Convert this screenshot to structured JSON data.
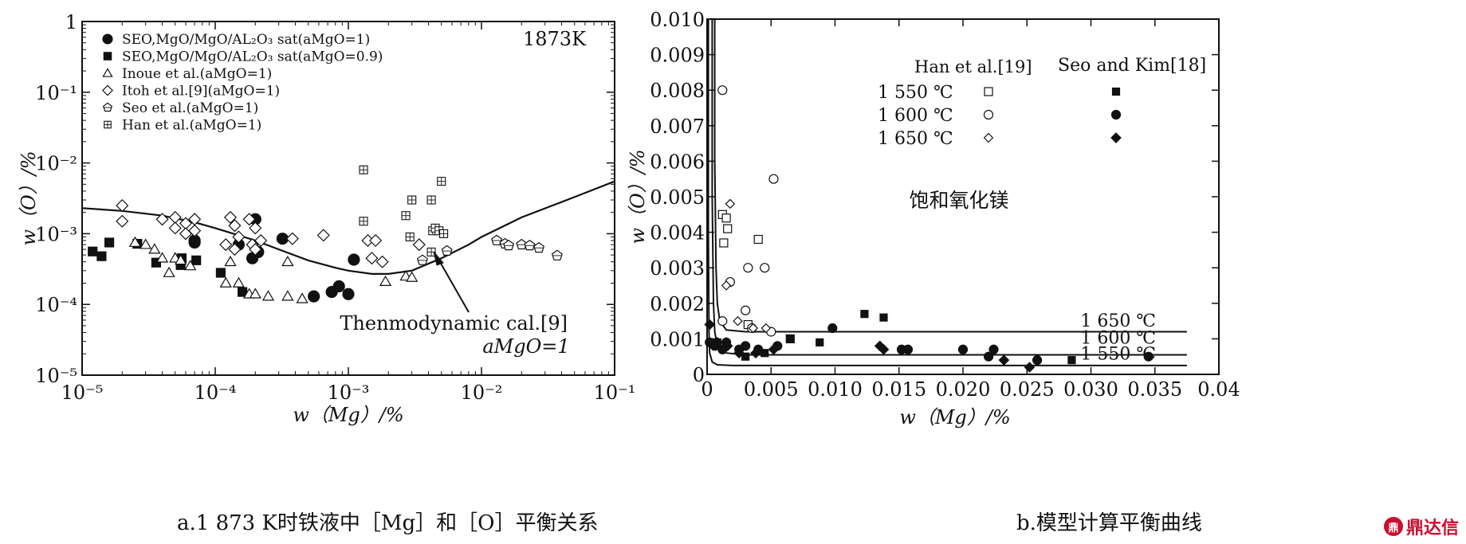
{
  "captions": {
    "a": "a.1 873 K时铁液中［Mg］和［O］平衡关系",
    "b": "b.模型计算平衡曲线"
  },
  "watermark": "鼎达信",
  "chart_data": [
    {
      "type": "scatter",
      "xscale": "log",
      "yscale": "log",
      "xlim": [
        1e-05,
        0.1
      ],
      "ylim": [
        1e-05,
        1
      ],
      "xlabel": "w（Mg）/%",
      "ylabel": "w（O）/%",
      "xticklabels": [
        "10⁻⁵",
        "10⁻⁴",
        "10⁻³",
        "10⁻²",
        "10⁻¹"
      ],
      "yticklabels": [
        "10⁻⁵",
        "10⁻⁴",
        "10⁻³",
        "10⁻²",
        "10⁻¹",
        "1"
      ],
      "temperature_label": "1873K",
      "legend": [
        {
          "marker": "filled-circle",
          "text": "SEO,MgO/MgO/AL₂O₃  sat(aMgO=1)"
        },
        {
          "marker": "filled-square",
          "text": "SEO,MgO/MgO/AL₂O₃  sat(aMgO=0.9)"
        },
        {
          "marker": "open-triangle",
          "text": "Inoue et al.(aMgO=1)"
        },
        {
          "marker": "open-diamond",
          "text": "Itoh et al.[9](aMgO=1)"
        },
        {
          "marker": "open-pentagon",
          "text": "Seo et al.(aMgO=1)"
        },
        {
          "marker": "open-box-plus",
          "text": "Han et al.(aMgO=1)"
        }
      ],
      "annotation": {
        "line1": "Thenmodynamic cal.[9]",
        "line2": "aMgO=1"
      },
      "curve": {
        "name": "Thenmodynamic cal. aMgO=1",
        "x": [
          1e-05,
          2e-05,
          4e-05,
          7e-05,
          0.0001,
          0.00015,
          0.0002,
          0.0003,
          0.0005,
          0.0008,
          0.001,
          0.0015,
          0.002,
          0.003,
          0.005,
          0.008,
          0.01,
          0.02,
          0.05,
          0.1
        ],
        "y": [
          0.0023,
          0.0021,
          0.0018,
          0.00145,
          0.0012,
          0.00095,
          0.0008,
          0.0006,
          0.00042,
          0.00033,
          0.0003,
          0.00027,
          0.00027,
          0.0003,
          0.00045,
          0.0007,
          0.0009,
          0.0017,
          0.0033,
          0.0055
        ]
      },
      "series": [
        {
          "name": "SEO,MgO/MgO/AL₂O₃  sat(aMgO=1)",
          "marker": "filled-circle",
          "points": [
            [
              7e-05,
              0.0008
            ],
            [
              7e-05,
              0.00075
            ],
            [
              0.00015,
              0.0007
            ],
            [
              0.0002,
              0.0016
            ],
            [
              0.00019,
              0.00045
            ],
            [
              0.00021,
              0.00055
            ],
            [
              0.00032,
              0.00085
            ],
            [
              0.00055,
              0.00013
            ],
            [
              0.00075,
              0.00015
            ],
            [
              0.00085,
              0.00018
            ],
            [
              0.001,
              0.00014
            ],
            [
              0.0011,
              0.00043
            ]
          ]
        },
        {
          "name": "SEO,MgO/MgO/AL₂O₃  sat(aMgO=0.9)",
          "marker": "filled-square",
          "points": [
            [
              1.2e-05,
              0.00056
            ],
            [
              1.4e-05,
              0.00048
            ],
            [
              1.6e-05,
              0.00075
            ],
            [
              2.6e-05,
              0.00072
            ],
            [
              3.6e-05,
              0.00039
            ],
            [
              5.5e-05,
              0.00036
            ],
            [
              5.6e-05,
              0.00045
            ],
            [
              7.2e-05,
              0.00042
            ],
            [
              0.00011,
              0.00028
            ],
            [
              0.00016,
              0.00015
            ]
          ]
        },
        {
          "name": "Inoue et al.(aMgO=1)",
          "marker": "open-triangle",
          "points": [
            [
              2.5e-05,
              0.00075
            ],
            [
              3e-05,
              0.0007
            ],
            [
              3.5e-05,
              0.0006
            ],
            [
              4e-05,
              0.00045
            ],
            [
              4.5e-05,
              0.00028
            ],
            [
              5e-05,
              0.00045
            ],
            [
              5.5e-05,
              0.00042
            ],
            [
              6.5e-05,
              0.00035
            ],
            [
              0.00012,
              0.0002
            ],
            [
              0.00015,
              0.0002
            ],
            [
              0.00013,
              0.0004
            ],
            [
              0.00018,
              0.00014
            ],
            [
              0.0002,
              0.00014
            ],
            [
              0.00025,
              0.00013
            ],
            [
              0.00035,
              0.00013
            ],
            [
              0.00045,
              0.00012
            ],
            [
              0.00035,
              0.0004
            ],
            [
              0.0019,
              0.00021
            ],
            [
              0.0027,
              0.00025
            ],
            [
              0.003,
              0.00024
            ]
          ]
        },
        {
          "name": "Itoh et al.[9](aMgO=1)",
          "marker": "open-diamond",
          "points": [
            [
              2e-05,
              0.0025
            ],
            [
              2e-05,
              0.0015
            ],
            [
              4e-05,
              0.0016
            ],
            [
              5e-05,
              0.0017
            ],
            [
              6e-05,
              0.0014
            ],
            [
              7e-05,
              0.0016
            ],
            [
              5e-05,
              0.0012
            ],
            [
              6e-05,
              0.001
            ],
            [
              7e-05,
              0.0011
            ],
            [
              0.00013,
              0.0017
            ],
            [
              0.00014,
              0.0013
            ],
            [
              0.00015,
              0.0009
            ],
            [
              0.00012,
              0.0007
            ],
            [
              0.00014,
              0.0006
            ],
            [
              0.00018,
              0.0016
            ],
            [
              0.0002,
              0.0012
            ],
            [
              0.00019,
              0.0007
            ],
            [
              0.00022,
              0.0008
            ],
            [
              0.0002,
              0.0006
            ],
            [
              0.00038,
              0.00085
            ],
            [
              0.00065,
              0.00095
            ],
            [
              0.0014,
              0.0008
            ],
            [
              0.0016,
              0.0008
            ],
            [
              0.0015,
              0.00045
            ],
            [
              0.0018,
              0.0004
            ],
            [
              0.0034,
              0.0007
            ]
          ]
        },
        {
          "name": "Seo et al.(aMgO=1)",
          "marker": "open-pentagon",
          "points": [
            [
              0.0036,
              0.00042
            ],
            [
              0.0055,
              0.00057
            ],
            [
              0.013,
              0.0008
            ],
            [
              0.015,
              0.00072
            ],
            [
              0.016,
              0.00068
            ],
            [
              0.02,
              0.0007
            ],
            [
              0.023,
              0.00068
            ],
            [
              0.027,
              0.00063
            ],
            [
              0.037,
              0.00049
            ]
          ]
        },
        {
          "name": "Han et al.(aMgO=1)",
          "marker": "open-box-plus",
          "points": [
            [
              0.0013,
              0.008
            ],
            [
              0.0013,
              0.0015
            ],
            [
              0.0027,
              0.0018
            ],
            [
              0.003,
              0.003
            ],
            [
              0.0029,
              0.0009
            ],
            [
              0.0042,
              0.003
            ],
            [
              0.0043,
              0.0011
            ],
            [
              0.0045,
              0.0012
            ],
            [
              0.0048,
              0.0011
            ],
            [
              0.005,
              0.0055
            ],
            [
              0.0052,
              0.001
            ],
            [
              0.0042,
              0.00055
            ]
          ]
        }
      ]
    },
    {
      "type": "scatter",
      "xlim": [
        0,
        0.04
      ],
      "ylim": [
        0,
        0.01
      ],
      "xlabel": "w（Mg）/%",
      "ylabel": "w（O）/%",
      "xticklabels": [
        "0",
        "0.005",
        "0.010",
        "0.015",
        "0.020",
        "0.025",
        "0.030",
        "0.035",
        "0.04"
      ],
      "yticklabels": [
        "0",
        "0.001",
        "0.002",
        "0.003",
        "0.004",
        "0.005",
        "0.006",
        "0.007",
        "0.008",
        "0.009",
        "0.010"
      ],
      "region_label": "饱和氧化镁",
      "legend_header": {
        "han": "Han et al.[19]",
        "seo": "Seo and Kim[18]"
      },
      "legend_rows": [
        "1 550 ℃",
        "1 600 ℃",
        "1 650 ℃"
      ],
      "curves": [
        {
          "name": "1 650 ℃",
          "x": [
            0.0006,
            0.0006,
            0.0007,
            0.0008,
            0.001,
            0.0015,
            0.003,
            0.01,
            0.02,
            0.03,
            0.0375
          ],
          "y": [
            0.01,
            0.006,
            0.003,
            0.002,
            0.0015,
            0.00125,
            0.0012,
            0.0012,
            0.0012,
            0.0012,
            0.0012
          ]
        },
        {
          "name": "1 600 ℃",
          "x": [
            0.0004,
            0.0004,
            0.0005,
            0.0006,
            0.0008,
            0.0015,
            0.003,
            0.01,
            0.02,
            0.03,
            0.0375
          ],
          "y": [
            0.01,
            0.005,
            0.002,
            0.0012,
            0.0008,
            0.0006,
            0.00055,
            0.00055,
            0.00055,
            0.00055,
            0.00055
          ]
        },
        {
          "name": "1 550 ℃",
          "x": [
            0.0001,
            0.0001,
            0.00015,
            0.0002,
            0.0004,
            0.0008,
            0.002,
            0.01,
            0.02,
            0.03,
            0.0375
          ],
          "y": [
            0.01,
            0.004,
            0.0012,
            0.0006,
            0.00035,
            0.00027,
            0.00025,
            0.00025,
            0.00025,
            0.00025,
            0.00025
          ]
        }
      ],
      "series": [
        {
          "name": "Han et al. 1 550 ℃",
          "marker": "open-square",
          "points": [
            [
              0.0012,
              0.0045
            ],
            [
              0.0013,
              0.0037
            ],
            [
              0.0015,
              0.0044
            ],
            [
              0.0016,
              0.0041
            ],
            [
              0.0032,
              0.0014
            ],
            [
              0.0065,
              0.001
            ],
            [
              0.004,
              0.0038
            ]
          ]
        },
        {
          "name": "Han et al. 1 600 ℃",
          "marker": "open-circle",
          "points": [
            [
              0.0012,
              0.008
            ],
            [
              0.0012,
              0.0015
            ],
            [
              0.003,
              0.0018
            ],
            [
              0.0032,
              0.003
            ],
            [
              0.0045,
              0.003
            ],
            [
              0.005,
              0.0012
            ],
            [
              0.0052,
              0.0055
            ],
            [
              0.0035,
              0.0013
            ],
            [
              0.0018,
              0.0026
            ]
          ]
        },
        {
          "name": "Han et al. 1 650 ℃",
          "marker": "open-diamond",
          "points": [
            [
              0.0018,
              0.0048
            ],
            [
              0.0015,
              0.0025
            ],
            [
              0.0024,
              0.0015
            ],
            [
              0.0036,
              0.0013
            ],
            [
              0.0046,
              0.0013
            ]
          ]
        },
        {
          "name": "Seo and Kim 1 550 ℃",
          "marker": "filled-square",
          "points": [
            [
              0.0008,
              0.0009
            ],
            [
              0.003,
              0.0005
            ],
            [
              0.0045,
              0.0006
            ],
            [
              0.0065,
              0.001
            ],
            [
              0.0088,
              0.0009
            ],
            [
              0.0123,
              0.0017
            ],
            [
              0.0138,
              0.0016
            ],
            [
              0.0285,
              0.0004
            ]
          ]
        },
        {
          "name": "Seo and Kim 1 600 ℃",
          "marker": "filled-circle",
          "points": [
            [
              0.0002,
              0.0009
            ],
            [
              0.0006,
              0.0008
            ],
            [
              0.0012,
              0.0007
            ],
            [
              0.0015,
              0.0009
            ],
            [
              0.0025,
              0.0007
            ],
            [
              0.003,
              0.0008
            ],
            [
              0.004,
              0.0007
            ],
            [
              0.0055,
              0.0008
            ],
            [
              0.0098,
              0.0013
            ],
            [
              0.0152,
              0.0007
            ],
            [
              0.0157,
              0.0007
            ],
            [
              0.02,
              0.0007
            ],
            [
              0.022,
              0.0005
            ],
            [
              0.0224,
              0.0007
            ],
            [
              0.0258,
              0.0004
            ],
            [
              0.0345,
              0.0005
            ]
          ]
        },
        {
          "name": "Seo and Kim 1 650 ℃",
          "marker": "filled-diamond",
          "points": [
            [
              0.0002,
              0.0014
            ],
            [
              0.0008,
              0.0009
            ],
            [
              0.0016,
              0.0008
            ],
            [
              0.0025,
              0.0006
            ],
            [
              0.0038,
              0.0006
            ],
            [
              0.0052,
              0.0007
            ],
            [
              0.0135,
              0.0008
            ],
            [
              0.0138,
              0.0007
            ],
            [
              0.0232,
              0.0004
            ],
            [
              0.0252,
              0.0002
            ]
          ]
        }
      ]
    }
  ]
}
